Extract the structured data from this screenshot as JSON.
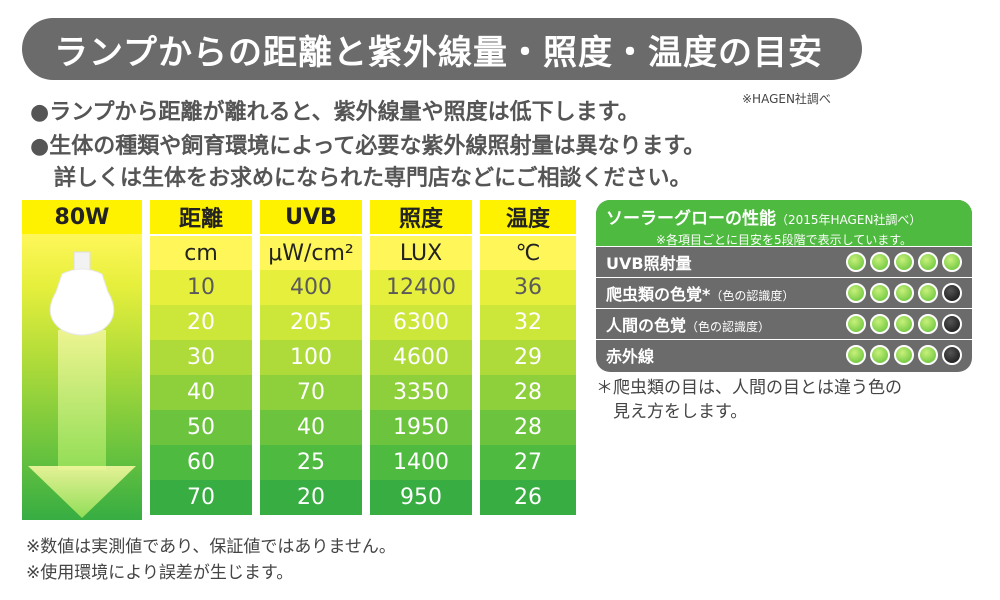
{
  "title": "ランプからの距離と紫外線量・照度・温度の目安",
  "source_top": "※HAGEN社調べ",
  "notes": [
    "●ランプから距離が離れると、紫外線量や照度は低下します。",
    "●生体の種類や飼育環境によって必要な紫外線照射量は異なります。",
    "詳しくは生体をお求めになられた専門店などにご相談ください。"
  ],
  "lamp": {
    "label": "80W"
  },
  "table": {
    "columns": [
      {
        "header": "距離",
        "unit": "cm",
        "values": [
          "10",
          "20",
          "30",
          "40",
          "50",
          "60",
          "70"
        ]
      },
      {
        "header": "UVB",
        "unit": "μW/cm²",
        "values": [
          "400",
          "205",
          "100",
          "70",
          "40",
          "25",
          "20"
        ]
      },
      {
        "header": "照度",
        "unit": "LUX",
        "values": [
          "12400",
          "6300",
          "4600",
          "3350",
          "1950",
          "1400",
          "950"
        ]
      },
      {
        "header": "温度",
        "unit": "℃",
        "values": [
          "36",
          "32",
          "29",
          "28",
          "28",
          "27",
          "26"
        ]
      }
    ]
  },
  "footnotes": [
    "※数値は実測値であり、保証値ではありません。",
    "※使用環境により誤差が生じます。"
  ],
  "performance": {
    "title": "ソーラーグローの性能",
    "title_source": "（2015年HAGEN社調べ）",
    "subtitle": "※各項目ごとに目安を5段階で表示しています。",
    "rows": [
      {
        "label": "UVB照射量",
        "sub": "",
        "level": 5
      },
      {
        "label": "爬虫類の色覚*",
        "sub": "（色の認識度）",
        "level": 4
      },
      {
        "label": "人間の色覚",
        "sub": "（色の認識度）",
        "level": 4
      },
      {
        "label": "赤外線",
        "sub": "",
        "level": 4
      }
    ],
    "note_lines": [
      "＊爬虫類の目は、人間の目とは違う色の",
      "　見え方をします。"
    ]
  },
  "colors": {
    "accent_green": "#4fba40",
    "header_yellow": "#fff200",
    "title_gray": "#6b6b6b"
  }
}
